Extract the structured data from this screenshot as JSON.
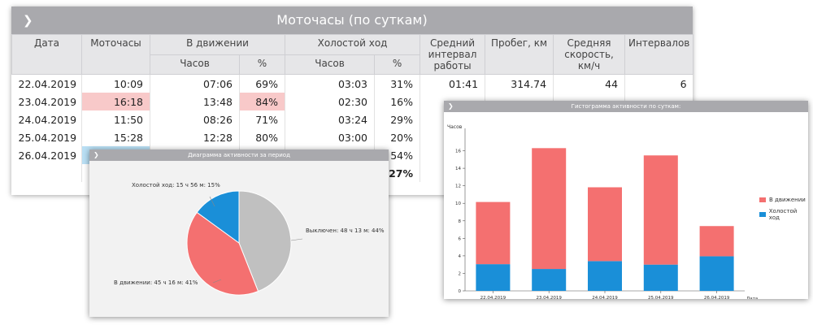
{
  "main": {
    "title": "Моточасы (по суткам)",
    "headers": {
      "date": "Дата",
      "motohours": "Моточасы",
      "moving": "В движении",
      "moving_hours": "Часов",
      "moving_pct": "%",
      "idle": "Холостой ход",
      "idle_hours": "Часов",
      "idle_pct": "%",
      "avg_interval": "Средний интервал работы",
      "mileage": "Пробег, км",
      "avg_speed": "Средняя скорость, км/ч",
      "intervals": "Интервалов"
    },
    "rows": [
      {
        "date": "22.04.2019",
        "moto": "10:09",
        "mov_h": "07:06",
        "mov_p": "69%",
        "idle_h": "03:03",
        "idle_p": "31%",
        "avg": "01:41",
        "km": "314.74",
        "speed": "44",
        "intervals": "6"
      },
      {
        "date": "23.04.2019",
        "moto": "16:18",
        "mov_h": "13:48",
        "mov_p": "84%",
        "idle_h": "02:30",
        "idle_p": "16%",
        "avg": "",
        "km": "",
        "speed": "",
        "intervals": ""
      },
      {
        "date": "24.04.2019",
        "moto": "11:50",
        "mov_h": "08:26",
        "mov_p": "71%",
        "idle_h": "03:24",
        "idle_p": "29%",
        "avg": "",
        "km": "",
        "speed": "",
        "intervals": ""
      },
      {
        "date": "25.04.2019",
        "moto": "15:28",
        "mov_h": "12:28",
        "mov_p": "80%",
        "idle_h": "03:00",
        "idle_p": "20%",
        "avg": "",
        "km": "",
        "speed": "",
        "intervals": ""
      },
      {
        "date": "26.04.2019",
        "moto": "",
        "mov_h": "",
        "mov_p": "",
        "idle_h": "",
        "idle_p": "54%",
        "avg": "",
        "km": "",
        "speed": "",
        "intervals": ""
      },
      {
        "date": "",
        "moto": "",
        "mov_h": "",
        "mov_p": "",
        "idle_h": "",
        "idle_p": "27%",
        "avg": "",
        "km": "",
        "speed": "",
        "intervals": ""
      }
    ]
  },
  "pie": {
    "title": "Диаграмма активности за период",
    "slices": [
      {
        "label": "Выключен: 48 ч 13 м: 44%",
        "value": 44,
        "color": "#c0c0c0"
      },
      {
        "label": "В движении: 45 ч 16 м: 41%",
        "value": 41,
        "color": "#f47070"
      },
      {
        "label": "Холостой ход: 15 ч 56 м: 15%",
        "value": 15,
        "color": "#1a8fd8"
      }
    ]
  },
  "bars": {
    "title": "Гистограмма активности по суткам:",
    "chart_data": {
      "type": "bar",
      "stacked": true,
      "categories": [
        "22.04.2019",
        "23.04.2019",
        "24.04.2019",
        "25.04.2019",
        "26.04.2019"
      ],
      "series": [
        {
          "name": "Холостой ход",
          "values": [
            3.05,
            2.5,
            3.4,
            3.0,
            3.95
          ],
          "color": "#1a8fd8"
        },
        {
          "name": "В движении",
          "values": [
            7.1,
            13.8,
            8.43,
            12.47,
            3.45
          ],
          "color": "#f47070"
        }
      ],
      "ylabel": "Часов",
      "xlabel": "Дата",
      "ylim": [
        0,
        18
      ],
      "yticks": [
        "0",
        "2",
        "4",
        "6",
        "8",
        "10",
        "12",
        "14",
        "16"
      ],
      "legend": "right"
    },
    "legend_labels": [
      "В движении",
      "Холостой ход"
    ]
  }
}
